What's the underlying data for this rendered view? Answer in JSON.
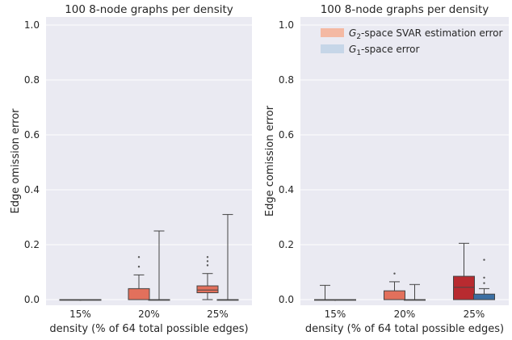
{
  "chart_data": [
    {
      "type": "box",
      "title": "100 8-node graphs per density",
      "xlabel": "density (% of 64 total possible edges)",
      "ylabel": "Edge omission error",
      "ylim": [
        0.0,
        1.0
      ],
      "yticks": [
        "0.0",
        "0.2",
        "0.4",
        "0.6",
        "0.8",
        "1.0"
      ],
      "categories": [
        "15%",
        "20%",
        "25%"
      ],
      "grid": true,
      "series": [
        {
          "name": "G2-space SVAR estimation error",
          "color": "#e2705c",
          "boxes": [
            {
              "category": "15%",
              "min": 0.0,
              "q1": 0.0,
              "median": 0.0,
              "q3": 0.0,
              "max": 0.0,
              "outliers": []
            },
            {
              "category": "20%",
              "min": 0.0,
              "q1": 0.0,
              "median": 0.0,
              "q3": 0.04,
              "max": 0.09,
              "outliers": [
                0.12,
                0.155
              ]
            },
            {
              "category": "25%",
              "min": 0.0,
              "q1": 0.025,
              "median": 0.035,
              "q3": 0.05,
              "max": 0.095,
              "outliers": [
                0.125,
                0.14,
                0.155
              ]
            }
          ]
        },
        {
          "name": "G1-space error",
          "color": "#4a81b4",
          "boxes": [
            {
              "category": "15%",
              "min": 0.0,
              "q1": 0.0,
              "median": 0.0,
              "q3": 0.0,
              "max": 0.0,
              "outliers": []
            },
            {
              "category": "20%",
              "min": 0.0,
              "q1": 0.0,
              "median": 0.0,
              "q3": 0.0,
              "max": 0.25,
              "outliers": []
            },
            {
              "category": "25%",
              "min": 0.0,
              "q1": 0.0,
              "median": 0.0,
              "q3": 0.0,
              "max": 0.31,
              "outliers": []
            }
          ]
        }
      ]
    },
    {
      "type": "box",
      "title": "100 8-node graphs per density",
      "xlabel": "density (% of 64 total possible edges)",
      "ylabel": "Edge comission error",
      "ylim": [
        0.0,
        1.0
      ],
      "yticks": [
        "0.0",
        "0.2",
        "0.4",
        "0.6",
        "0.8",
        "1.0"
      ],
      "categories": [
        "15%",
        "20%",
        "25%"
      ],
      "grid": true,
      "legend": {
        "placement": "top-right",
        "entries": [
          {
            "label_html": "<tspan font-style=\"italic\">G</tspan><tspan font-size=\"9\" dy=\"3\">2</tspan><tspan dy=\"-3\">-space SVAR estimation error</tspan>",
            "color": "#f4b9a3"
          },
          {
            "label_html": "<tspan font-style=\"italic\">G</tspan><tspan font-size=\"9\" dy=\"3\">1</tspan><tspan dy=\"-3\">-space error</tspan>",
            "color": "#c6d6e8"
          }
        ]
      },
      "series": [
        {
          "name": "G2-space SVAR estimation error",
          "color_by_category": [
            "#e2705c",
            "#e2705c",
            "#b82b30"
          ],
          "boxes": [
            {
              "category": "15%",
              "min": 0.0,
              "q1": 0.0,
              "median": 0.0,
              "q3": 0.0,
              "max": 0.052,
              "outliers": []
            },
            {
              "category": "20%",
              "min": 0.0,
              "q1": 0.0,
              "median": 0.0,
              "q3": 0.032,
              "max": 0.065,
              "outliers": [
                0.095
              ]
            },
            {
              "category": "25%",
              "min": 0.0,
              "q1": 0.0,
              "median": 0.045,
              "q3": 0.085,
              "max": 0.205,
              "outliers": []
            }
          ]
        },
        {
          "name": "G1-space error",
          "color": "#3b6fa3",
          "boxes": [
            {
              "category": "15%",
              "min": 0.0,
              "q1": 0.0,
              "median": 0.0,
              "q3": 0.0,
              "max": 0.0,
              "outliers": []
            },
            {
              "category": "20%",
              "min": 0.0,
              "q1": 0.0,
              "median": 0.0,
              "q3": 0.0,
              "max": 0.055,
              "outliers": []
            },
            {
              "category": "25%",
              "min": 0.0,
              "q1": 0.0,
              "median": 0.0,
              "q3": 0.02,
              "max": 0.04,
              "outliers": [
                0.06,
                0.08,
                0.145
              ]
            }
          ]
        }
      ]
    }
  ]
}
